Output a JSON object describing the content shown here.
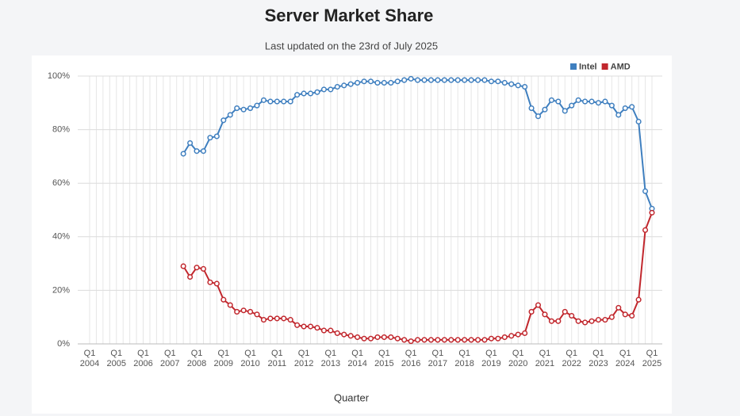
{
  "chart_data": {
    "type": "line",
    "title": "Server Market Share",
    "subtitle": "Last updated on the 23rd of July 2025",
    "x_label": "Quarter",
    "categories": [
      "Q1 2004",
      null,
      null,
      null,
      "Q1 2005",
      null,
      null,
      null,
      "Q1 2006",
      null,
      null,
      null,
      "Q1 2007",
      null,
      null,
      null,
      "Q1 2008",
      null,
      null,
      null,
      "Q1 2009",
      null,
      null,
      null,
      "Q1 2010",
      null,
      null,
      null,
      "Q1 2011",
      null,
      null,
      null,
      "Q1 2012",
      null,
      null,
      null,
      "Q1 2013",
      null,
      null,
      null,
      "Q1 2014",
      null,
      null,
      null,
      "Q1 2015",
      null,
      null,
      null,
      "Q1 2016",
      null,
      null,
      null,
      "Q1 2017",
      null,
      null,
      null,
      "Q1 2018",
      null,
      null,
      null,
      "Q1 2019",
      null,
      null,
      null,
      "Q1 2020",
      null,
      null,
      null,
      "Q1 2021",
      null,
      null,
      null,
      "Q1 2022",
      null,
      null,
      null,
      "Q1 2023",
      null,
      null,
      null,
      "Q1 2024",
      null,
      null,
      null,
      "Q1 2025"
    ],
    "series": [
      {
        "name": "Intel",
        "color": "#3f7fbf",
        "values": [
          null,
          null,
          null,
          null,
          null,
          null,
          null,
          null,
          null,
          null,
          null,
          null,
          null,
          null,
          71,
          75,
          72,
          72,
          77,
          77.5,
          83.5,
          85.5,
          88,
          87.5,
          88,
          89,
          91,
          90.5,
          90.5,
          90.5,
          90.5,
          93,
          93.5,
          93.5,
          94,
          95,
          95,
          96,
          96.5,
          97,
          97.5,
          98,
          98,
          97.5,
          97.5,
          97.5,
          98,
          98.5,
          99,
          98.5,
          98.5,
          98.5,
          98.5,
          98.5,
          98.5,
          98.5,
          98.5,
          98.5,
          98.5,
          98.5,
          98,
          98,
          97.5,
          97,
          96.5,
          96,
          88,
          85,
          87.5,
          91,
          90.5,
          87,
          89,
          91,
          90.5,
          90.5,
          90,
          90.5,
          89,
          85.5,
          88,
          88.5,
          83,
          57,
          50.5
        ]
      },
      {
        "name": "AMD",
        "color": "#c1272d",
        "values": [
          null,
          null,
          null,
          null,
          null,
          null,
          null,
          null,
          null,
          null,
          null,
          null,
          null,
          null,
          29,
          25,
          28.5,
          28,
          23,
          22.5,
          16.5,
          14.5,
          12,
          12.5,
          12,
          11,
          9,
          9.5,
          9.5,
          9.5,
          9,
          7,
          6.5,
          6.5,
          6,
          5,
          5,
          4,
          3.5,
          3,
          2.5,
          2,
          2,
          2.5,
          2.5,
          2.5,
          2,
          1.5,
          1,
          1.5,
          1.5,
          1.5,
          1.5,
          1.5,
          1.5,
          1.5,
          1.5,
          1.5,
          1.5,
          1.5,
          2,
          2,
          2.5,
          3,
          3.5,
          4,
          12,
          14.5,
          11,
          8.5,
          8.5,
          12,
          10.5,
          8.5,
          8,
          8.5,
          9,
          9,
          10,
          13.5,
          11,
          10.5,
          16.5,
          42.5,
          49
        ]
      }
    ],
    "ylim": [
      0,
      100
    ],
    "yticks": [
      {
        "value": 0,
        "label": "0%"
      },
      {
        "value": 20,
        "label": "20%"
      },
      {
        "value": 40,
        "label": "40%"
      },
      {
        "value": 60,
        "label": "60%"
      },
      {
        "value": 80,
        "label": "80%"
      },
      {
        "value": 100,
        "label": "100%"
      }
    ],
    "grid": true,
    "legend": "top-right"
  }
}
